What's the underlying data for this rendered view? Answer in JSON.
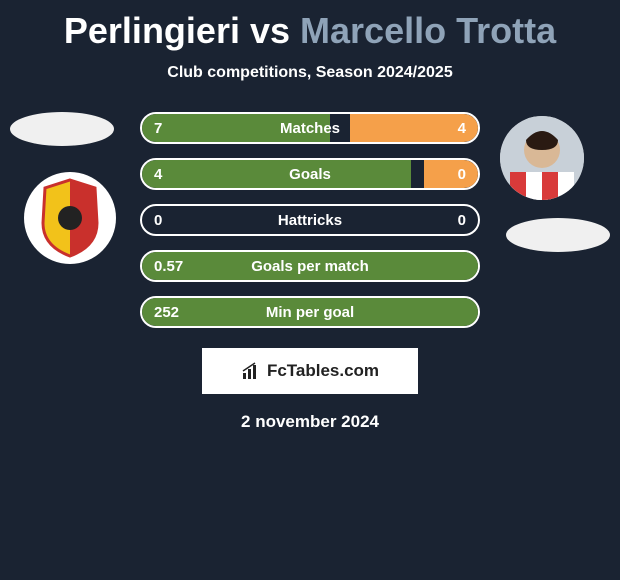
{
  "title": {
    "player1": "Perlingieri",
    "vs": "vs",
    "player2": "Marcello Trotta",
    "player1_color": "#ffffff",
    "player2_color": "#8fa3b8"
  },
  "subtitle": "Club competitions, Season 2024/2025",
  "colors": {
    "left_fill": "#5a8a3a",
    "right_fill": "#f5a04a",
    "background": "#1a2332",
    "border": "#ffffff",
    "text": "#ffffff"
  },
  "bars": [
    {
      "label": "Matches",
      "left_val": "7",
      "right_val": "4",
      "left_pct": 56,
      "right_pct": 38
    },
    {
      "label": "Goals",
      "left_val": "4",
      "right_val": "0",
      "left_pct": 80,
      "right_pct": 16
    },
    {
      "label": "Hattricks",
      "left_val": "0",
      "right_val": "0",
      "left_pct": 0,
      "right_pct": 0
    },
    {
      "label": "Goals per match",
      "left_val": "0.57",
      "right_val": "",
      "left_pct": 100,
      "right_pct": 0
    },
    {
      "label": "Min per goal",
      "left_val": "252",
      "right_val": "",
      "left_pct": 100,
      "right_pct": 0
    }
  ],
  "logo_text": "FcTables.com",
  "date": "2 november 2024",
  "avatars": {
    "left_club_primary": "#f2c21a",
    "left_club_secondary": "#c9302c",
    "right_player_shirt_stripe1": "#d83a3a",
    "right_player_shirt_stripe2": "#ffffff"
  }
}
